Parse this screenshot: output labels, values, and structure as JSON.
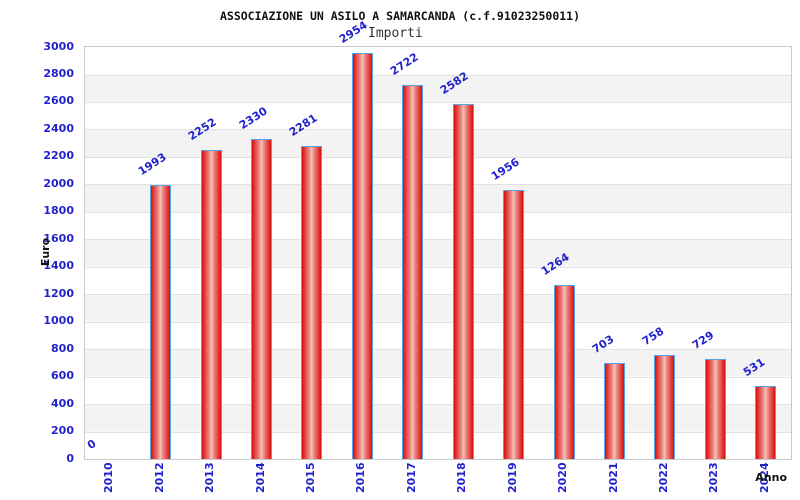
{
  "title": "ASSOCIAZIONE UN ASILO A SAMARCANDA (c.f.91023250011)",
  "chart_data": {
    "type": "bar",
    "title": "ASSOCIAZIONE UN ASILO A SAMARCANDA (c.f.91023250011)",
    "legend": "Importi",
    "legend_position": "top-center",
    "xlabel": "Anno",
    "ylabel": "Euro",
    "categories": [
      "2010",
      "2012",
      "2013",
      "2014",
      "2015",
      "2016",
      "2017",
      "2018",
      "2019",
      "2020",
      "2021",
      "2022",
      "2023",
      "2024"
    ],
    "values": [
      0,
      1993,
      2252,
      2330,
      2281,
      2954,
      2722,
      2582,
      1956,
      1264,
      703,
      758,
      729,
      531
    ],
    "ylim": [
      0,
      3000
    ],
    "ytick_step": 200,
    "grid": "horizontal alternating bands every 200",
    "bar_value_labels_rotated": true,
    "xtick_labels_rotated": true,
    "colors": {
      "tick_and_value_labels": "#2222cc",
      "bar_edge_red": "#d90f0f",
      "bar_center_pink": "#f5c3bd",
      "bar_border_blue": "#58a2e8",
      "band_gray": "#f3f3f3",
      "grid_line": "#e2e2e2",
      "plot_border": "#c9c9c9",
      "title_text": "#111111",
      "legend_text": "#333333"
    }
  }
}
